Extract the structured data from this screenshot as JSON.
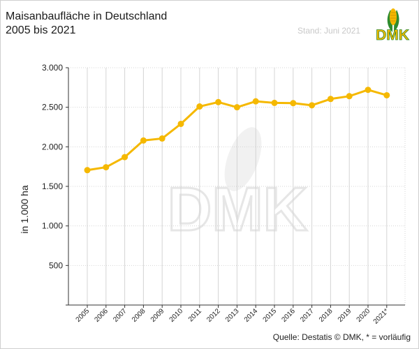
{
  "header": {
    "title_line1": "Maisanbaufläche in Deutschland",
    "title_line2": "2005 bis 2021",
    "stand": "Stand: Juni 2021",
    "logo_text": "DMK"
  },
  "footer": {
    "source": "Quelle: Destatis © DMK, * = vorläufig"
  },
  "watermark": {
    "text": "DMK"
  },
  "colors": {
    "series": "#f5b800",
    "grid": "#d4d4d4",
    "axis": "#333333",
    "logo_green": "#2e8b2e",
    "logo_yellow": "#f5b800",
    "watermark": "#eeeeee"
  },
  "chart_data": {
    "type": "line",
    "title": "Maisanbaufläche in Deutschland 2005 bis 2021",
    "ylabel": "in 1.000 ha",
    "xlabel": "",
    "ylim": [
      0,
      3000
    ],
    "yticks": [
      {
        "value": 500,
        "label": "500"
      },
      {
        "value": 1000,
        "label": "1.000"
      },
      {
        "value": 1500,
        "label": "1.500"
      },
      {
        "value": 2000,
        "label": "2.000"
      },
      {
        "value": 2500,
        "label": "2.500"
      },
      {
        "value": 3000,
        "label": "3.000"
      }
    ],
    "categories": [
      "2005",
      "2006",
      "2007",
      "2008",
      "2009",
      "2010",
      "2011",
      "2012",
      "2013",
      "2014",
      "2015",
      "2016",
      "2017",
      "2018",
      "2019",
      "2020",
      "2021*"
    ],
    "grid": true,
    "series": [
      {
        "values": [
          1705,
          1742,
          1870,
          2080,
          2105,
          2290,
          2510,
          2565,
          2500,
          2575,
          2555,
          2552,
          2525,
          2605,
          2640,
          2720,
          2652
        ]
      }
    ]
  }
}
